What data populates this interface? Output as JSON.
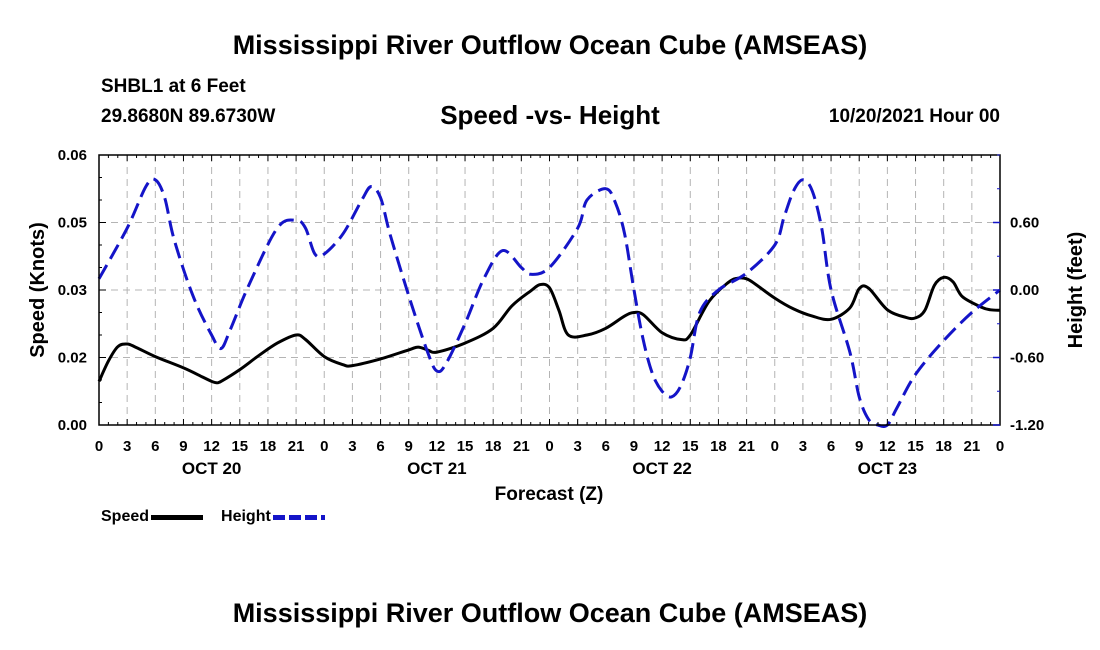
{
  "page": {
    "title": "Mississippi River Outflow Ocean Cube (AMSEAS)",
    "bottom_title": "Mississippi River Outflow Ocean Cube (AMSEAS)",
    "station": "SHBL1 at 6 Feet",
    "coords": "29.8680N  89.6730W",
    "subtitle": "Speed -vs- Height",
    "run_time": "10/20/2021 Hour 00"
  },
  "colors": {
    "speed": "#000000",
    "height": "#1414c8",
    "grid": "#b4b4b4"
  },
  "chart_data": {
    "type": "line",
    "title": "Speed -vs- Height",
    "xlabel": "Forecast (Z)",
    "ylabel": "Speed (Knots)",
    "y2label": "Height (feet)",
    "ylim": [
      0,
      0.06
    ],
    "y2lim": [
      -1.2,
      1.2
    ],
    "yticks": [
      {
        "v": 0.0,
        "label": "0.00"
      },
      {
        "v": 0.015,
        "label": "0.02"
      },
      {
        "v": 0.03,
        "label": "0.03"
      },
      {
        "v": 0.045,
        "label": "0.05"
      },
      {
        "v": 0.06,
        "label": "0.06"
      }
    ],
    "y2ticks": [
      {
        "v": 0.6,
        "label": "0.60"
      },
      {
        "v": 0.0,
        "label": "0.00"
      },
      {
        "v": -0.6,
        "label": "-0.60"
      },
      {
        "v": -1.2,
        "label": "-1.20"
      }
    ],
    "x_range_hours": [
      0,
      96
    ],
    "x_tick_step_hours": 3,
    "x_tick_labels": [
      "0",
      "3",
      "6",
      "9",
      "12",
      "15",
      "18",
      "21",
      "0",
      "3",
      "6",
      "9",
      "12",
      "15",
      "18",
      "21",
      "0",
      "3",
      "6",
      "9",
      "12",
      "15",
      "18",
      "21",
      "0",
      "3",
      "6",
      "9",
      "12",
      "15",
      "18",
      "21",
      "0"
    ],
    "day_labels": [
      {
        "hour": 12,
        "label": "OCT 20"
      },
      {
        "hour": 36,
        "label": "OCT 21"
      },
      {
        "hour": 60,
        "label": "OCT 22"
      },
      {
        "hour": 84,
        "label": "OCT 23"
      }
    ],
    "series": [
      {
        "name": "Speed",
        "axis": "left",
        "color": "#000000",
        "dash": false,
        "points": [
          [
            0,
            0.0097
          ],
          [
            1,
            0.0142
          ],
          [
            2,
            0.0174
          ],
          [
            3,
            0.018
          ],
          [
            4,
            0.0172
          ],
          [
            6,
            0.0152
          ],
          [
            9,
            0.0127
          ],
          [
            11,
            0.0107
          ],
          [
            12,
            0.0097
          ],
          [
            12.5,
            0.0094
          ],
          [
            13,
            0.0097
          ],
          [
            15,
            0.0123
          ],
          [
            17,
            0.0154
          ],
          [
            19,
            0.0182
          ],
          [
            21,
            0.02
          ],
          [
            22,
            0.019
          ],
          [
            24,
            0.0152
          ],
          [
            26,
            0.0134
          ],
          [
            27,
            0.0132
          ],
          [
            30,
            0.0147
          ],
          [
            33,
            0.0167
          ],
          [
            34,
            0.0173
          ],
          [
            35,
            0.0167
          ],
          [
            36,
            0.0162
          ],
          [
            39,
            0.0182
          ],
          [
            42,
            0.0215
          ],
          [
            44,
            0.0265
          ],
          [
            46,
            0.0298
          ],
          [
            47,
            0.0312
          ],
          [
            48,
            0.0305
          ],
          [
            49,
            0.0255
          ],
          [
            50,
            0.02
          ],
          [
            52,
            0.02
          ],
          [
            54,
            0.0215
          ],
          [
            56,
            0.0242
          ],
          [
            57,
            0.025
          ],
          [
            58,
            0.0245
          ],
          [
            60,
            0.0205
          ],
          [
            62,
            0.019
          ],
          [
            63,
            0.02
          ],
          [
            65,
            0.0275
          ],
          [
            67,
            0.0316
          ],
          [
            68,
            0.0326
          ],
          [
            69,
            0.0325
          ],
          [
            70,
            0.0312
          ],
          [
            72,
            0.0282
          ],
          [
            74,
            0.0258
          ],
          [
            76,
            0.0242
          ],
          [
            78,
            0.0235
          ],
          [
            80,
            0.026
          ],
          [
            81,
            0.0303
          ],
          [
            82,
            0.0304
          ],
          [
            84,
            0.0256
          ],
          [
            86,
            0.0239
          ],
          [
            87,
            0.0238
          ],
          [
            88,
            0.0255
          ],
          [
            89,
            0.031
          ],
          [
            90,
            0.0328
          ],
          [
            91,
            0.0318
          ],
          [
            92,
            0.0285
          ],
          [
            94,
            0.0262
          ],
          [
            95,
            0.0256
          ],
          [
            96,
            0.0255
          ]
        ]
      },
      {
        "name": "Height",
        "axis": "right",
        "color": "#1414c8",
        "dash": true,
        "points": [
          [
            0,
            0.1
          ],
          [
            3,
            0.55
          ],
          [
            5,
            0.92
          ],
          [
            6,
            0.98
          ],
          [
            7,
            0.82
          ],
          [
            8,
            0.45
          ],
          [
            10,
            -0.05
          ],
          [
            12,
            -0.4
          ],
          [
            13,
            -0.52
          ],
          [
            14,
            -0.35
          ],
          [
            16,
            0.05
          ],
          [
            19,
            0.55
          ],
          [
            21,
            0.62
          ],
          [
            22,
            0.55
          ],
          [
            23,
            0.32
          ],
          [
            24,
            0.32
          ],
          [
            26,
            0.5
          ],
          [
            28,
            0.8
          ],
          [
            29,
            0.92
          ],
          [
            30,
            0.82
          ],
          [
            31,
            0.5
          ],
          [
            33,
            -0.05
          ],
          [
            35,
            -0.55
          ],
          [
            36,
            -0.72
          ],
          [
            37,
            -0.65
          ],
          [
            39,
            -0.3
          ],
          [
            41,
            0.1
          ],
          [
            43,
            0.35
          ],
          [
            45,
            0.2
          ],
          [
            46,
            0.14
          ],
          [
            48,
            0.2
          ],
          [
            51,
            0.55
          ],
          [
            52,
            0.8
          ],
          [
            54,
            0.9
          ],
          [
            55,
            0.78
          ],
          [
            56,
            0.5
          ],
          [
            57,
            0.0
          ],
          [
            58,
            -0.45
          ],
          [
            59,
            -0.75
          ],
          [
            60,
            -0.9
          ],
          [
            61,
            -0.95
          ],
          [
            62,
            -0.85
          ],
          [
            63,
            -0.6
          ],
          [
            64,
            -0.2
          ],
          [
            66,
            0.0
          ],
          [
            69,
            0.15
          ],
          [
            72,
            0.4
          ],
          [
            73,
            0.65
          ],
          [
            74,
            0.88
          ],
          [
            75,
            0.98
          ],
          [
            76,
            0.88
          ],
          [
            77,
            0.55
          ],
          [
            78,
            0.0
          ],
          [
            80,
            -0.55
          ],
          [
            81,
            -0.95
          ],
          [
            82,
            -1.15
          ],
          [
            83,
            -1.2
          ],
          [
            84,
            -1.2
          ],
          [
            85,
            -1.05
          ],
          [
            87,
            -0.75
          ],
          [
            90,
            -0.45
          ],
          [
            93,
            -0.2
          ],
          [
            96,
            0.0
          ]
        ]
      }
    ],
    "legend": [
      {
        "label": "Speed",
        "color": "#000000",
        "dash": false
      },
      {
        "label": "Height",
        "color": "#1414c8",
        "dash": true
      }
    ]
  }
}
